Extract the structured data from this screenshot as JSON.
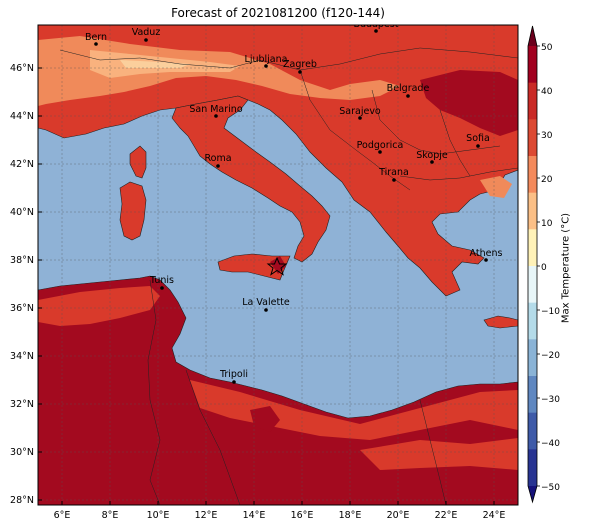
{
  "title": "Forecast of 2021081200 (f120-144)",
  "colorbar": {
    "label": "Max Temperature (°C)",
    "ticks": [
      "50",
      "40",
      "30",
      "20",
      "10",
      "0",
      "−10",
      "−20",
      "−30",
      "−40",
      "−50"
    ],
    "colors": [
      "#6b001c",
      "#a1001f",
      "#c92a26",
      "#dc4a33",
      "#f48a5c",
      "#fbbf86",
      "#fff2b8",
      "#e8f6f8",
      "#b4dbe9",
      "#8ab3d6",
      "#5f87c0",
      "#3e5aa8",
      "#283492",
      "#16127a"
    ]
  },
  "axes": {
    "xticks": [
      "6°E",
      "8°E",
      "10°E",
      "12°E",
      "14°E",
      "16°E",
      "18°E",
      "20°E",
      "22°E",
      "24°E"
    ],
    "yticks": [
      "46°N",
      "44°N",
      "42°N",
      "40°N",
      "38°N",
      "36°N",
      "34°N",
      "32°N",
      "30°N",
      "28°N"
    ]
  },
  "cities": [
    {
      "name": "Bern"
    },
    {
      "name": "Vaduz"
    },
    {
      "name": "Budapest"
    },
    {
      "name": "Ljubljana"
    },
    {
      "name": "Zagreb"
    },
    {
      "name": "Belgrade"
    },
    {
      "name": "San Marino"
    },
    {
      "name": "Sarajevo"
    },
    {
      "name": "Sofia"
    },
    {
      "name": "Podgorica"
    },
    {
      "name": "Skopje"
    },
    {
      "name": "Roma"
    },
    {
      "name": "Tirana"
    },
    {
      "name": "Athens"
    },
    {
      "name": "Tunis"
    },
    {
      "name": "La Valette"
    },
    {
      "name": "Tripoli"
    }
  ],
  "colors": {
    "sea": "#8fb2d6",
    "land_hot": "#d93a2b",
    "land_very_hot": "#a30a1f",
    "land_warm": "#f08a5a",
    "land_mild": "#f9b27e"
  }
}
